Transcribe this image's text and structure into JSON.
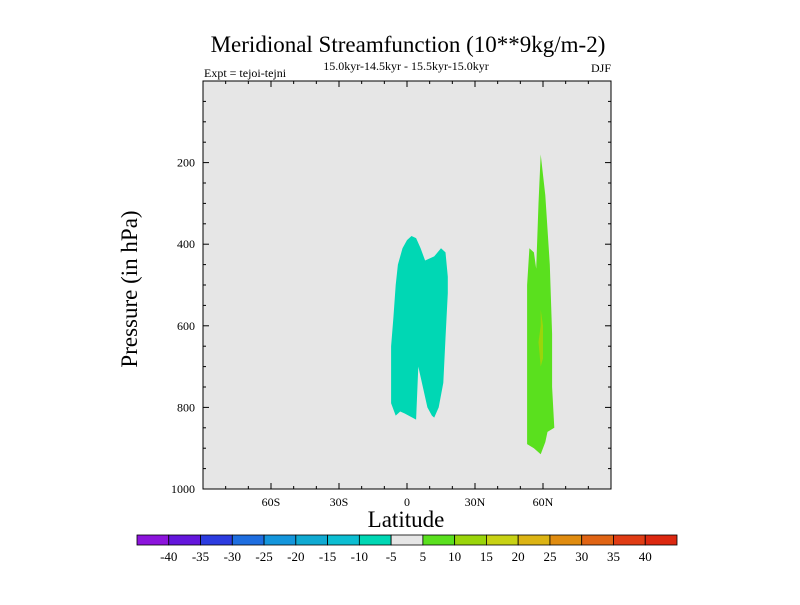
{
  "chart_data": {
    "type": "contour",
    "title": "Meridional Streamfunction (10**9kg/m-2)",
    "subtitle": "15.0kyr-14.5kyr - 15.5kyr-15.0kyr",
    "left_label": "Expt = tejoi-tejni",
    "right_label": "DJF",
    "xlabel": "Latitude",
    "ylabel": "Pressure (in hPa)",
    "xlim": [
      -90,
      90
    ],
    "ylim": [
      0,
      1000
    ],
    "y_inverted": true,
    "x_ticks": [
      {
        "value": -60,
        "label": "60S"
      },
      {
        "value": -30,
        "label": "30S"
      },
      {
        "value": 0,
        "label": "0"
      },
      {
        "value": 30,
        "label": "30N"
      },
      {
        "value": 60,
        "label": "60N"
      }
    ],
    "y_ticks": [
      {
        "value": 200,
        "label": "200"
      },
      {
        "value": 400,
        "label": "400"
      },
      {
        "value": 600,
        "label": "600"
      },
      {
        "value": 800,
        "label": "800"
      },
      {
        "value": 1000,
        "label": "1000"
      }
    ],
    "background_color": "#e6e6e6",
    "contours": [
      {
        "name": "negative-cell-equator",
        "level_range": [
          -10,
          -5
        ],
        "color": "#00d7b4",
        "points": [
          [
            -7,
            790
          ],
          [
            -5,
            820
          ],
          [
            -3,
            810
          ],
          [
            -1,
            815
          ],
          [
            4,
            830
          ],
          [
            5,
            700
          ],
          [
            9,
            800
          ],
          [
            11,
            820
          ],
          [
            12,
            825
          ],
          [
            14,
            800
          ],
          [
            16,
            740
          ],
          [
            17,
            630
          ],
          [
            18,
            520
          ],
          [
            18,
            480
          ],
          [
            17,
            420
          ],
          [
            15,
            410
          ],
          [
            12,
            430
          ],
          [
            8,
            440
          ],
          [
            6,
            410
          ],
          [
            4,
            385
          ],
          [
            2,
            380
          ],
          [
            0,
            390
          ],
          [
            -2,
            410
          ],
          [
            -4,
            450
          ],
          [
            -5,
            500
          ],
          [
            -6,
            580
          ],
          [
            -7,
            650
          ],
          [
            -7,
            720
          ]
        ]
      },
      {
        "name": "positive-cell-60n",
        "level_range": [
          5,
          10
        ],
        "color": "#5ae01e",
        "points": [
          [
            53,
            890
          ],
          [
            56,
            900
          ],
          [
            59,
            915
          ],
          [
            61,
            885
          ],
          [
            62,
            860
          ],
          [
            65,
            850
          ],
          [
            64,
            750
          ],
          [
            64,
            620
          ],
          [
            63,
            450
          ],
          [
            61,
            280
          ],
          [
            59,
            180
          ],
          [
            58,
            300
          ],
          [
            57,
            460
          ],
          [
            56,
            420
          ],
          [
            54,
            410
          ],
          [
            53,
            500
          ],
          [
            53,
            650
          ],
          [
            53,
            800
          ]
        ]
      },
      {
        "name": "positive-core-60n",
        "level_range": [
          10,
          15
        ],
        "color": "#9ad50a",
        "points": [
          [
            59,
            560
          ],
          [
            60,
            600
          ],
          [
            60,
            680
          ],
          [
            59,
            700
          ],
          [
            58,
            640
          ],
          [
            59,
            600
          ]
        ]
      }
    ],
    "colorbar": {
      "levels": [
        "-40",
        "-35",
        "-30",
        "-25",
        "-20",
        "-15",
        "-10",
        "-5",
        "5",
        "10",
        "15",
        "20",
        "25",
        "30",
        "35",
        "40"
      ],
      "colors": [
        "#8c14dc",
        "#6416dc",
        "#2c3ce0",
        "#1e6ee0",
        "#1496dc",
        "#10aad2",
        "#0cbed2",
        "#00d7b4",
        "#e6e6e6",
        "#5ae01e",
        "#9ad50a",
        "#c8d214",
        "#dcb414",
        "#e08c10",
        "#e06414",
        "#e03c14",
        "#dc2810"
      ]
    }
  }
}
